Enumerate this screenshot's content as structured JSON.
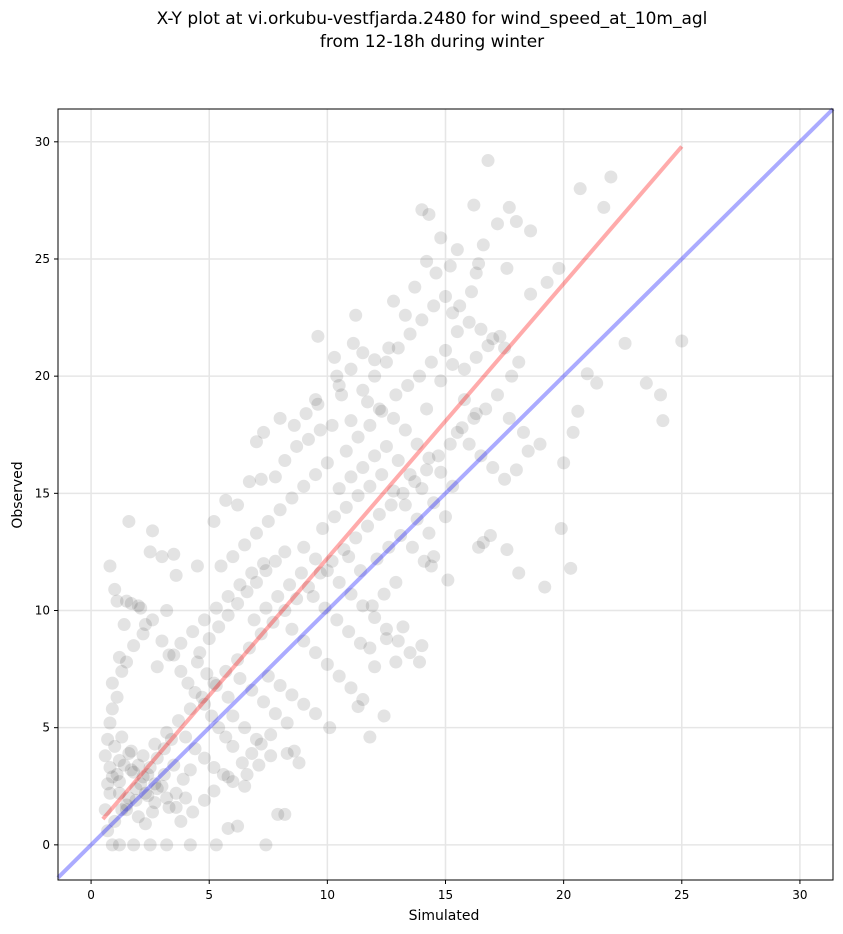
{
  "chart_data": {
    "type": "scatter",
    "title_line1": "X-Y plot at vi.orkubu-vestfjarda.2480 for wind_speed_at_10m_agl",
    "title_line2": "from 12-18h during winter",
    "xlabel": "Simulated",
    "ylabel": "Observed",
    "xlim": [
      -1.4,
      31.4
    ],
    "ylim": [
      -1.5,
      31.4
    ],
    "xticks": [
      0,
      5,
      10,
      15,
      20,
      25,
      30
    ],
    "yticks": [
      0,
      5,
      10,
      15,
      20,
      25,
      30
    ],
    "grid": true,
    "point_color": "#000000",
    "identity_line": {
      "x": [
        -1.4,
        31.4
      ],
      "y": [
        -1.4,
        31.4
      ],
      "color": "#0000ff"
    },
    "fit_line": {
      "x": [
        0.5,
        25
      ],
      "y": [
        1.1,
        29.8
      ],
      "color": "#ff0000"
    },
    "points": [
      [
        0.8,
        11.9
      ],
      [
        1.0,
        10.9
      ],
      [
        1.6,
        13.8
      ],
      [
        2.6,
        13.4
      ],
      [
        2.5,
        12.5
      ],
      [
        3.0,
        12.3
      ],
      [
        3.5,
        12.4
      ],
      [
        3.6,
        11.5
      ],
      [
        4.5,
        11.9
      ],
      [
        5.2,
        13.8
      ],
      [
        0.9,
        0.0
      ],
      [
        1.2,
        0.0
      ],
      [
        1.8,
        0.0
      ],
      [
        2.5,
        0.0
      ],
      [
        3.2,
        0.0
      ],
      [
        4.2,
        0.0
      ],
      [
        5.3,
        0.0
      ],
      [
        7.4,
        0.0
      ],
      [
        6.2,
        0.8
      ],
      [
        5.8,
        0.7
      ],
      [
        7.9,
        1.3
      ],
      [
        8.2,
        1.3
      ],
      [
        6.5,
        2.5
      ],
      [
        5.8,
        2.9
      ],
      [
        8.3,
        3.9
      ],
      [
        8.6,
        4.0
      ],
      [
        8.8,
        3.5
      ],
      [
        10.1,
        5.0
      ],
      [
        11.8,
        4.6
      ],
      [
        11.3,
        5.9
      ],
      [
        12.4,
        5.5
      ],
      [
        12.9,
        7.8
      ],
      [
        13.2,
        9.3
      ],
      [
        13.9,
        7.8
      ],
      [
        14.0,
        8.5
      ],
      [
        14.4,
        11.9
      ],
      [
        14.5,
        12.3
      ],
      [
        15.1,
        11.3
      ],
      [
        16.4,
        12.7
      ],
      [
        16.6,
        12.9
      ],
      [
        16.9,
        13.2
      ],
      [
        17.6,
        12.6
      ],
      [
        18.1,
        11.6
      ],
      [
        19.2,
        11.0
      ],
      [
        19.9,
        13.5
      ],
      [
        20.3,
        11.8
      ],
      [
        20.0,
        16.3
      ],
      [
        20.4,
        17.6
      ],
      [
        20.6,
        18.5
      ],
      [
        21.0,
        20.1
      ],
      [
        21.4,
        19.7
      ],
      [
        22.6,
        21.4
      ],
      [
        23.5,
        19.7
      ],
      [
        24.1,
        19.2
      ],
      [
        24.2,
        18.1
      ],
      [
        25.0,
        21.5
      ],
      [
        20.7,
        28.0
      ],
      [
        21.7,
        27.2
      ],
      [
        22.0,
        28.5
      ],
      [
        16.8,
        29.2
      ],
      [
        17.7,
        27.2
      ],
      [
        16.2,
        27.3
      ],
      [
        14.0,
        27.1
      ],
      [
        14.3,
        26.9
      ],
      [
        17.2,
        26.5
      ],
      [
        18.0,
        26.6
      ],
      [
        18.6,
        26.2
      ],
      [
        19.8,
        24.6
      ],
      [
        17.6,
        24.6
      ],
      [
        18.6,
        23.5
      ],
      [
        19.3,
        24.0
      ],
      [
        14.8,
        25.9
      ],
      [
        15.5,
        25.4
      ],
      [
        15.2,
        24.7
      ],
      [
        16.6,
        25.6
      ],
      [
        16.4,
        24.8
      ],
      [
        16.3,
        24.4
      ],
      [
        14.2,
        24.9
      ],
      [
        14.6,
        24.4
      ],
      [
        13.7,
        23.8
      ],
      [
        12.8,
        23.2
      ],
      [
        13.3,
        22.6
      ],
      [
        12.6,
        21.2
      ],
      [
        11.2,
        22.6
      ],
      [
        9.6,
        21.7
      ],
      [
        10.3,
        20.8
      ],
      [
        11.1,
        21.4
      ],
      [
        10.4,
        20.0
      ],
      [
        9.6,
        18.8
      ],
      [
        10.6,
        19.2
      ],
      [
        11.0,
        18.1
      ],
      [
        11.7,
        18.9
      ],
      [
        12.2,
        18.6
      ],
      [
        12.9,
        19.2
      ],
      [
        13.4,
        19.6
      ],
      [
        13.9,
        20.0
      ],
      [
        14.4,
        20.6
      ],
      [
        15.0,
        21.1
      ],
      [
        15.5,
        21.9
      ],
      [
        16.0,
        22.3
      ],
      [
        16.5,
        22.0
      ],
      [
        17.0,
        21.6
      ],
      [
        17.5,
        21.2
      ],
      [
        18.1,
        20.6
      ],
      [
        17.8,
        20.0
      ],
      [
        17.2,
        19.2
      ],
      [
        16.7,
        18.6
      ],
      [
        16.2,
        18.2
      ],
      [
        15.7,
        17.8
      ],
      [
        15.2,
        17.1
      ],
      [
        14.7,
        16.6
      ],
      [
        14.2,
        16.0
      ],
      [
        13.7,
        15.5
      ],
      [
        13.2,
        15.0
      ],
      [
        12.7,
        14.5
      ],
      [
        12.2,
        14.1
      ],
      [
        11.7,
        13.6
      ],
      [
        11.2,
        13.1
      ],
      [
        10.7,
        12.6
      ],
      [
        10.2,
        12.1
      ],
      [
        9.7,
        11.6
      ],
      [
        9.2,
        11.0
      ],
      [
        8.7,
        10.5
      ],
      [
        8.2,
        10.0
      ],
      [
        7.7,
        9.5
      ],
      [
        7.2,
        9.0
      ],
      [
        6.7,
        8.4
      ],
      [
        6.2,
        7.9
      ],
      [
        5.7,
        7.4
      ],
      [
        5.2,
        6.9
      ],
      [
        4.7,
        6.3
      ],
      [
        4.2,
        5.8
      ],
      [
        3.7,
        5.3
      ],
      [
        3.2,
        4.8
      ],
      [
        2.7,
        4.3
      ],
      [
        2.2,
        3.8
      ],
      [
        1.7,
        3.2
      ],
      [
        1.2,
        2.7
      ],
      [
        0.8,
        2.2
      ],
      [
        0.6,
        1.5
      ],
      [
        0.7,
        0.6
      ],
      [
        1.0,
        1.0
      ],
      [
        1.3,
        1.5
      ],
      [
        1.6,
        2.0
      ],
      [
        1.9,
        2.4
      ],
      [
        2.2,
        2.9
      ],
      [
        2.5,
        3.3
      ],
      [
        2.8,
        3.7
      ],
      [
        3.1,
        4.1
      ],
      [
        3.4,
        4.5
      ],
      [
        1.1,
        3.0
      ],
      [
        1.4,
        3.4
      ],
      [
        1.8,
        3.1
      ],
      [
        2.1,
        2.6
      ],
      [
        2.4,
        2.1
      ],
      [
        2.7,
        1.8
      ],
      [
        3.0,
        2.5
      ],
      [
        1.5,
        1.7
      ],
      [
        1.2,
        2.2
      ],
      [
        0.9,
        2.9
      ],
      [
        1.0,
        4.2
      ],
      [
        1.3,
        4.6
      ],
      [
        1.7,
        4.0
      ],
      [
        2.0,
        1.2
      ],
      [
        2.3,
        0.9
      ],
      [
        2.6,
        1.4
      ],
      [
        3.3,
        1.6
      ],
      [
        3.6,
        2.2
      ],
      [
        3.9,
        2.8
      ],
      [
        4.2,
        3.2
      ],
      [
        0.6,
        3.8
      ],
      [
        0.7,
        4.5
      ],
      [
        0.8,
        5.2
      ],
      [
        0.9,
        5.8
      ],
      [
        1.1,
        6.3
      ],
      [
        1.3,
        7.4
      ],
      [
        1.5,
        7.8
      ],
      [
        1.8,
        8.5
      ],
      [
        2.2,
        9.0
      ],
      [
        2.6,
        9.6
      ],
      [
        0.9,
        6.9
      ],
      [
        1.2,
        8.0
      ],
      [
        1.4,
        9.4
      ],
      [
        1.7,
        10.3
      ],
      [
        2.1,
        10.1
      ],
      [
        2.3,
        9.4
      ],
      [
        1.1,
        10.4
      ],
      [
        1.5,
        10.4
      ],
      [
        2.0,
        10.2
      ],
      [
        3.2,
        10.0
      ],
      [
        3.0,
        8.7
      ],
      [
        3.5,
        8.1
      ],
      [
        3.8,
        7.4
      ],
      [
        4.1,
        6.9
      ],
      [
        4.4,
        6.5
      ],
      [
        4.8,
        6.0
      ],
      [
        5.1,
        5.5
      ],
      [
        5.4,
        5.0
      ],
      [
        5.7,
        4.6
      ],
      [
        6.0,
        4.2
      ],
      [
        4.0,
        4.6
      ],
      [
        4.4,
        4.1
      ],
      [
        4.8,
        3.7
      ],
      [
        5.2,
        3.3
      ],
      [
        5.6,
        3.0
      ],
      [
        6.0,
        2.7
      ],
      [
        6.4,
        3.5
      ],
      [
        6.8,
        3.9
      ],
      [
        7.2,
        4.3
      ],
      [
        7.6,
        4.7
      ],
      [
        4.6,
        8.2
      ],
      [
        5.0,
        8.8
      ],
      [
        5.4,
        9.3
      ],
      [
        5.8,
        9.8
      ],
      [
        6.2,
        10.3
      ],
      [
        6.6,
        10.8
      ],
      [
        7.0,
        11.2
      ],
      [
        7.4,
        11.7
      ],
      [
        7.8,
        12.1
      ],
      [
        8.2,
        12.5
      ],
      [
        5.5,
        11.9
      ],
      [
        6.0,
        12.3
      ],
      [
        6.5,
        12.8
      ],
      [
        7.0,
        13.3
      ],
      [
        7.5,
        13.8
      ],
      [
        8.0,
        14.3
      ],
      [
        8.5,
        14.8
      ],
      [
        9.0,
        15.3
      ],
      [
        9.5,
        15.8
      ],
      [
        10.0,
        16.3
      ],
      [
        5.7,
        14.7
      ],
      [
        6.2,
        14.5
      ],
      [
        6.7,
        15.5
      ],
      [
        7.2,
        15.6
      ],
      [
        7.8,
        15.7
      ],
      [
        8.2,
        16.4
      ],
      [
        8.7,
        17.0
      ],
      [
        9.2,
        17.3
      ],
      [
        9.7,
        17.7
      ],
      [
        10.2,
        17.9
      ],
      [
        7.0,
        17.2
      ],
      [
        7.3,
        17.6
      ],
      [
        8.0,
        18.2
      ],
      [
        8.6,
        17.9
      ],
      [
        9.1,
        18.4
      ],
      [
        9.5,
        19.0
      ],
      [
        10.5,
        19.6
      ],
      [
        11.0,
        20.3
      ],
      [
        11.5,
        21.0
      ],
      [
        12.0,
        20.7
      ],
      [
        10.8,
        16.8
      ],
      [
        11.3,
        17.4
      ],
      [
        11.8,
        17.9
      ],
      [
        12.3,
        18.5
      ],
      [
        12.8,
        18.2
      ],
      [
        13.3,
        17.7
      ],
      [
        13.8,
        17.1
      ],
      [
        14.3,
        16.5
      ],
      [
        14.8,
        15.9
      ],
      [
        15.3,
        15.3
      ],
      [
        10.5,
        15.2
      ],
      [
        11.0,
        15.7
      ],
      [
        11.5,
        16.1
      ],
      [
        12.0,
        16.6
      ],
      [
        12.5,
        17.0
      ],
      [
        13.0,
        16.4
      ],
      [
        13.5,
        15.8
      ],
      [
        14.0,
        15.2
      ],
      [
        14.5,
        14.6
      ],
      [
        15.0,
        14.0
      ],
      [
        9.8,
        13.5
      ],
      [
        10.3,
        14.0
      ],
      [
        10.8,
        14.4
      ],
      [
        11.3,
        14.9
      ],
      [
        11.8,
        15.3
      ],
      [
        12.3,
        15.8
      ],
      [
        12.8,
        15.1
      ],
      [
        13.3,
        14.5
      ],
      [
        13.8,
        13.9
      ],
      [
        14.3,
        13.3
      ],
      [
        9.0,
        12.7
      ],
      [
        9.5,
        12.2
      ],
      [
        10.0,
        11.7
      ],
      [
        10.5,
        11.2
      ],
      [
        11.0,
        10.7
      ],
      [
        11.5,
        10.2
      ],
      [
        12.0,
        9.7
      ],
      [
        12.5,
        9.2
      ],
      [
        13.0,
        8.7
      ],
      [
        13.5,
        8.2
      ],
      [
        8.5,
        9.2
      ],
      [
        9.0,
        8.7
      ],
      [
        9.5,
        8.2
      ],
      [
        10.0,
        7.7
      ],
      [
        10.5,
        7.2
      ],
      [
        11.0,
        6.7
      ],
      [
        11.5,
        6.2
      ],
      [
        12.0,
        7.6
      ],
      [
        12.5,
        8.8
      ],
      [
        11.8,
        8.4
      ],
      [
        7.5,
        7.2
      ],
      [
        8.0,
        6.8
      ],
      [
        8.5,
        6.4
      ],
      [
        9.0,
        6.0
      ],
      [
        9.5,
        5.6
      ],
      [
        8.3,
        5.2
      ],
      [
        7.8,
        5.6
      ],
      [
        7.3,
        6.1
      ],
      [
        6.8,
        6.6
      ],
      [
        6.3,
        7.1
      ],
      [
        6.0,
        5.5
      ],
      [
        6.5,
        5.0
      ],
      [
        7.0,
        4.5
      ],
      [
        6.6,
        3.0
      ],
      [
        7.1,
        3.4
      ],
      [
        7.6,
        3.8
      ],
      [
        5.8,
        6.3
      ],
      [
        5.3,
        6.8
      ],
      [
        4.9,
        7.3
      ],
      [
        4.5,
        7.8
      ],
      [
        15.5,
        17.6
      ],
      [
        16.0,
        17.1
      ],
      [
        16.5,
        16.6
      ],
      [
        17.0,
        16.1
      ],
      [
        17.5,
        15.6
      ],
      [
        18.0,
        16.0
      ],
      [
        18.5,
        16.8
      ],
      [
        19.0,
        17.1
      ],
      [
        18.3,
        17.6
      ],
      [
        17.7,
        18.2
      ],
      [
        15.8,
        20.3
      ],
      [
        16.3,
        20.8
      ],
      [
        16.8,
        21.3
      ],
      [
        17.3,
        21.7
      ],
      [
        15.3,
        22.7
      ],
      [
        15.0,
        23.4
      ],
      [
        15.6,
        23.0
      ],
      [
        16.1,
        23.6
      ],
      [
        14.5,
        23.0
      ],
      [
        14.0,
        22.4
      ],
      [
        13.5,
        21.8
      ],
      [
        13.0,
        21.2
      ],
      [
        12.5,
        20.6
      ],
      [
        12.0,
        20.0
      ],
      [
        11.5,
        19.4
      ],
      [
        14.8,
        19.8
      ],
      [
        15.3,
        20.5
      ],
      [
        15.8,
        19.0
      ],
      [
        16.3,
        18.4
      ],
      [
        14.2,
        18.6
      ],
      [
        3.8,
        1.0
      ],
      [
        4.3,
        1.4
      ],
      [
        4.8,
        1.9
      ],
      [
        5.2,
        2.3
      ],
      [
        3.5,
        3.4
      ],
      [
        3.1,
        3.0
      ],
      [
        2.7,
        2.6
      ],
      [
        2.3,
        2.2
      ],
      [
        1.9,
        1.9
      ],
      [
        1.5,
        1.5
      ],
      [
        0.7,
        2.6
      ],
      [
        0.8,
        3.3
      ],
      [
        1.2,
        3.6
      ],
      [
        1.6,
        3.9
      ],
      [
        2.0,
        3.4
      ],
      [
        2.4,
        3.0
      ],
      [
        2.8,
        2.4
      ],
      [
        3.2,
        2.0
      ],
      [
        3.6,
        1.6
      ],
      [
        4.0,
        2.0
      ],
      [
        6.9,
        9.6
      ],
      [
        7.4,
        10.1
      ],
      [
        7.9,
        10.6
      ],
      [
        8.4,
        11.1
      ],
      [
        8.9,
        11.6
      ],
      [
        9.4,
        10.6
      ],
      [
        9.9,
        10.1
      ],
      [
        10.4,
        9.6
      ],
      [
        10.9,
        9.1
      ],
      [
        11.4,
        8.6
      ],
      [
        5.3,
        10.1
      ],
      [
        5.8,
        10.6
      ],
      [
        6.3,
        11.1
      ],
      [
        6.8,
        11.6
      ],
      [
        7.3,
        12.0
      ],
      [
        4.8,
        9.6
      ],
      [
        4.3,
        9.1
      ],
      [
        3.8,
        8.6
      ],
      [
        3.3,
        8.1
      ],
      [
        2.8,
        7.6
      ],
      [
        12.1,
        12.2
      ],
      [
        12.6,
        12.7
      ],
      [
        13.1,
        13.2
      ],
      [
        13.6,
        12.7
      ],
      [
        14.1,
        12.1
      ],
      [
        12.9,
        11.2
      ],
      [
        12.4,
        10.7
      ],
      [
        11.9,
        10.2
      ],
      [
        11.4,
        11.7
      ],
      [
        10.9,
        12.3
      ]
    ]
  }
}
